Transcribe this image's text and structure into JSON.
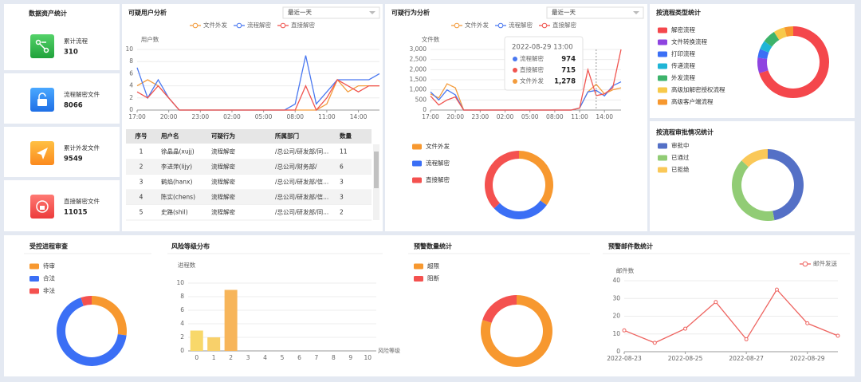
{
  "asset_stats": {
    "title": "数据资产统计",
    "items": [
      {
        "label": "累计流程",
        "value": 310
      },
      {
        "label": "流程解密文件",
        "value": 8066
      },
      {
        "label": "累计外发文件",
        "value": 9549
      },
      {
        "label": "直接解密文件",
        "value": 11015
      }
    ]
  },
  "user_table": {
    "columns": [
      "序号",
      "用户名",
      "可疑行为",
      "所属部门",
      "数量"
    ],
    "rows": [
      [
        1,
        "徐晶晶(xujj)",
        "流程解密",
        "/总公司/研发部/同...",
        11
      ],
      [
        2,
        "李进萍(lijy)",
        "流程解密",
        "/总公司/财务部/",
        6
      ],
      [
        3,
        "鹤焰(hanx)",
        "流程解密",
        "/总公司/研发部/信...",
        3
      ],
      [
        4,
        "陈实(chens)",
        "流程解密",
        "/总公司/研发部/信...",
        3
      ],
      [
        5,
        "史路(shil)",
        "流程解密",
        "/总公司/研发部/同...",
        2
      ]
    ]
  },
  "chart_data": [
    {
      "type": "line",
      "title": "可疑用户分析",
      "dropdown": "最近一天",
      "y_label": "用户数",
      "grid": true,
      "categories": [
        "17:00",
        null,
        null,
        "20:00",
        null,
        null,
        "23:00",
        null,
        null,
        "02:00",
        null,
        null,
        "05:00",
        null,
        null,
        "08:00",
        null,
        null,
        "11:00",
        null,
        null,
        "14:00",
        null,
        null
      ],
      "ylim": [
        0,
        10
      ],
      "yticks": [
        0,
        2,
        4,
        6,
        8,
        10
      ],
      "series": [
        {
          "name": "文件外发",
          "color": "#f39c3d",
          "values": [
            4,
            5,
            4,
            2,
            0,
            0,
            0,
            0,
            0,
            0,
            0,
            0,
            0,
            0,
            0,
            0,
            0,
            0,
            1,
            5,
            3,
            4,
            4,
            4
          ]
        },
        {
          "name": "流程解密",
          "color": "#4a78f0",
          "values": [
            7,
            2,
            5,
            2,
            0,
            0,
            0,
            0,
            0,
            0,
            0,
            0,
            0,
            0,
            0,
            1,
            9,
            1,
            3,
            5,
            5,
            5,
            5,
            6
          ]
        },
        {
          "name": "直接解密",
          "color": "#f0544f",
          "values": [
            3,
            2,
            4,
            2,
            0,
            0,
            0,
            0,
            0,
            0,
            0,
            0,
            0,
            0,
            0,
            0,
            4,
            0,
            2,
            5,
            4,
            3,
            4,
            4
          ]
        }
      ]
    },
    {
      "type": "line",
      "title": "可疑行为分析",
      "dropdown": "最近一天",
      "y_label": "文件数",
      "grid": true,
      "categories": [
        "17:00",
        null,
        null,
        "20:00",
        null,
        null,
        "23:00",
        null,
        null,
        "02:00",
        null,
        null,
        "05:00",
        null,
        null,
        "08:00",
        null,
        null,
        "11:00",
        null,
        null,
        "14:00",
        null,
        null
      ],
      "ylim": [
        0,
        3000
      ],
      "yticks": [
        0,
        500,
        {
          "value": 1000,
          "label": "1,000"
        },
        {
          "value": 1500,
          "label": "1,500"
        },
        {
          "value": 2000,
          "label": "2,000"
        },
        {
          "value": 2500,
          "label": "2,500"
        },
        {
          "value": 3000,
          "label": "3,000"
        }
      ],
      "series": [
        {
          "name": "文件外发",
          "color": "#f39c3d",
          "values": [
            800,
            600,
            1300,
            1100,
            0,
            0,
            0,
            0,
            0,
            0,
            0,
            0,
            0,
            0,
            0,
            0,
            0,
            0,
            100,
            900,
            1278,
            800,
            1000,
            1100
          ]
        },
        {
          "name": "流程解密",
          "color": "#4a78f0",
          "values": [
            900,
            500,
            1000,
            750,
            0,
            0,
            0,
            0,
            0,
            0,
            0,
            0,
            0,
            0,
            0,
            0,
            0,
            0,
            100,
            900,
            974,
            700,
            1200,
            1400
          ]
        },
        {
          "name": "直接解密",
          "color": "#f0544f",
          "values": [
            700,
            250,
            500,
            650,
            0,
            0,
            0,
            0,
            0,
            0,
            0,
            0,
            0,
            0,
            0,
            0,
            0,
            0,
            100,
            2000,
            715,
            800,
            1100,
            3000
          ]
        }
      ],
      "tooltip": {
        "title": "2022-08-29 13:00",
        "names": [
          "流程解密",
          "直接解密",
          "文件外发"
        ],
        "values": [
          974,
          715,
          1278
        ],
        "value_labels": [
          "974",
          "715",
          "1,278"
        ]
      }
    },
    {
      "type": "pie",
      "series": [
        {
          "name": "文件外发",
          "color": "#f7982f",
          "value": 35
        },
        {
          "name": "流程解密",
          "color": "#3b6ff5",
          "value": 28
        },
        {
          "name": "直接解密",
          "color": "#f4514f",
          "value": 37
        }
      ]
    },
    {
      "type": "pie",
      "title": "按流程类型统计",
      "series": [
        {
          "name": "解密流程",
          "color": "#f4474c",
          "value": 70
        },
        {
          "name": "文件转换流程",
          "color": "#8e44e0",
          "value": 7
        },
        {
          "name": "打印流程",
          "color": "#3b6ff5",
          "value": 4
        },
        {
          "name": "传递流程",
          "color": "#1fb5d6",
          "value": 4
        },
        {
          "name": "外发流程",
          "color": "#3db36b",
          "value": 6
        },
        {
          "name": "高级加解密授权流程",
          "color": "#f7c94a",
          "value": 5
        },
        {
          "name": "高级客户端流程",
          "color": "#f7982f",
          "value": 4
        }
      ]
    },
    {
      "type": "pie",
      "title": "按流程审批情况统计",
      "series": [
        {
          "name": "审批中",
          "color": "#5470c6",
          "value": 47
        },
        {
          "name": "已通过",
          "color": "#91cc75",
          "value": 40
        },
        {
          "name": "已拒绝",
          "color": "#fac858",
          "value": 13
        }
      ]
    },
    {
      "type": "pie",
      "title": "受控进程审查",
      "series": [
        {
          "name": "待审",
          "color": "#f7982f",
          "value": 27
        },
        {
          "name": "合法",
          "color": "#3b6ff5",
          "value": 68
        },
        {
          "name": "非法",
          "color": "#f4514f",
          "value": 5
        }
      ]
    },
    {
      "type": "bar",
      "title": "风险等级分布",
      "y_label": "进程数",
      "x_label": "风险等级",
      "color": "#f8c76a",
      "grid": true,
      "categories": [
        0,
        1,
        2,
        3,
        4,
        5,
        6,
        7,
        8,
        9,
        10
      ],
      "values": [
        3,
        2,
        9,
        0,
        0,
        0,
        0,
        0,
        0,
        0,
        0
      ],
      "colors": [
        "#f8d86a",
        "#f8d06a",
        "#f7b55a",
        "#f8c76a",
        "#f8c76a",
        "#f8c76a",
        "#f8c76a",
        "#f8c76a",
        "#f8c76a",
        "#f8c76a",
        "#f8c76a"
      ],
      "ylim": [
        0,
        10
      ],
      "yticks": [
        0,
        2,
        4,
        6,
        8,
        10
      ]
    },
    {
      "type": "pie",
      "title": "预警数量统计",
      "series": [
        {
          "name": "超限",
          "color": "#f7982f",
          "value": 80
        },
        {
          "name": "阻断",
          "color": "#f4514f",
          "value": 20
        }
      ]
    },
    {
      "type": "line",
      "title": "预警邮件数统计",
      "y_label": "邮件数",
      "grid": true,
      "markers": true,
      "categories": [
        "2022-08-23",
        null,
        "2022-08-25",
        null,
        "2022-08-27",
        null,
        "2022-08-29",
        null
      ],
      "ylim": [
        0,
        40
      ],
      "yticks": [
        0,
        10,
        20,
        30,
        40
      ],
      "series": [
        {
          "name": "邮件发送",
          "color": "#ee6460",
          "values": [
            12,
            5,
            13,
            28,
            7,
            35,
            16,
            9
          ]
        }
      ]
    }
  ]
}
